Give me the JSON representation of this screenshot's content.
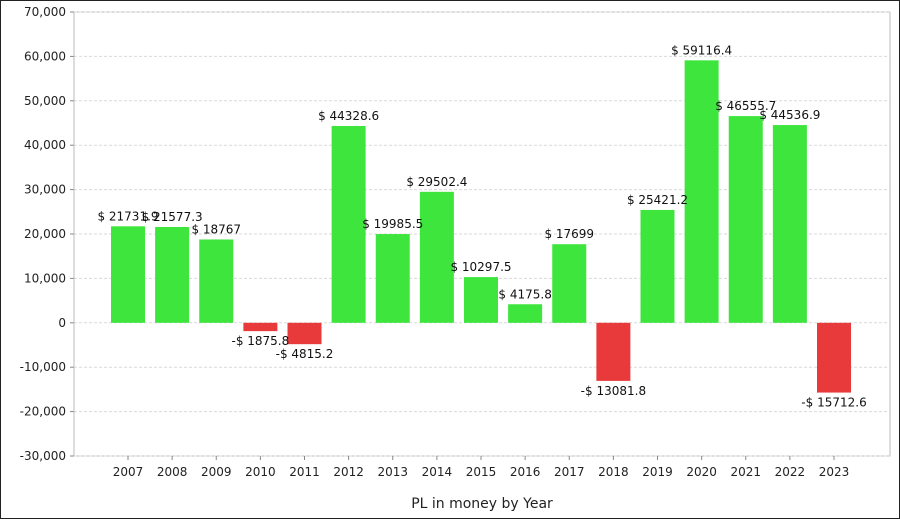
{
  "chart_data": {
    "type": "bar",
    "categories": [
      "2007",
      "2008",
      "2009",
      "2010",
      "2011",
      "2012",
      "2013",
      "2014",
      "2015",
      "2016",
      "2017",
      "2018",
      "2019",
      "2020",
      "2021",
      "2022",
      "2023"
    ],
    "values": [
      21731.9,
      21577.3,
      18767,
      -1875.8,
      -4815.2,
      44328.6,
      19985.5,
      29502.4,
      10297.5,
      4175.8,
      17699,
      -13081.8,
      25421.2,
      59116.4,
      46555.7,
      44536.9,
      -15712.6
    ],
    "data_labels": [
      "$ 21731.9",
      "$ 21577.3",
      "$ 18767",
      "-$ 1875.8",
      "-$ 4815.2",
      "$ 44328.6",
      "$ 19985.5",
      "$ 29502.4",
      "$ 10297.5",
      "$ 4175.8",
      "$ 17699",
      "-$ 13081.8",
      "$ 25421.2",
      "$ 59116.4",
      "$ 46555.7",
      "$ 44536.9",
      "-$ 15712.6"
    ],
    "yticks": [
      "-30,000",
      "-20,000",
      "-10,000",
      "0",
      "10,000",
      "20,000",
      "30,000",
      "40,000",
      "50,000",
      "60,000",
      "70,000"
    ],
    "ylim": [
      -30000,
      70000
    ],
    "xlabel": "PL in money by Year",
    "grid": true,
    "colors": {
      "positive": "#3de53d",
      "negative": "#e83a3a",
      "grid": "#d9d9d9",
      "axis": "#888888"
    }
  }
}
